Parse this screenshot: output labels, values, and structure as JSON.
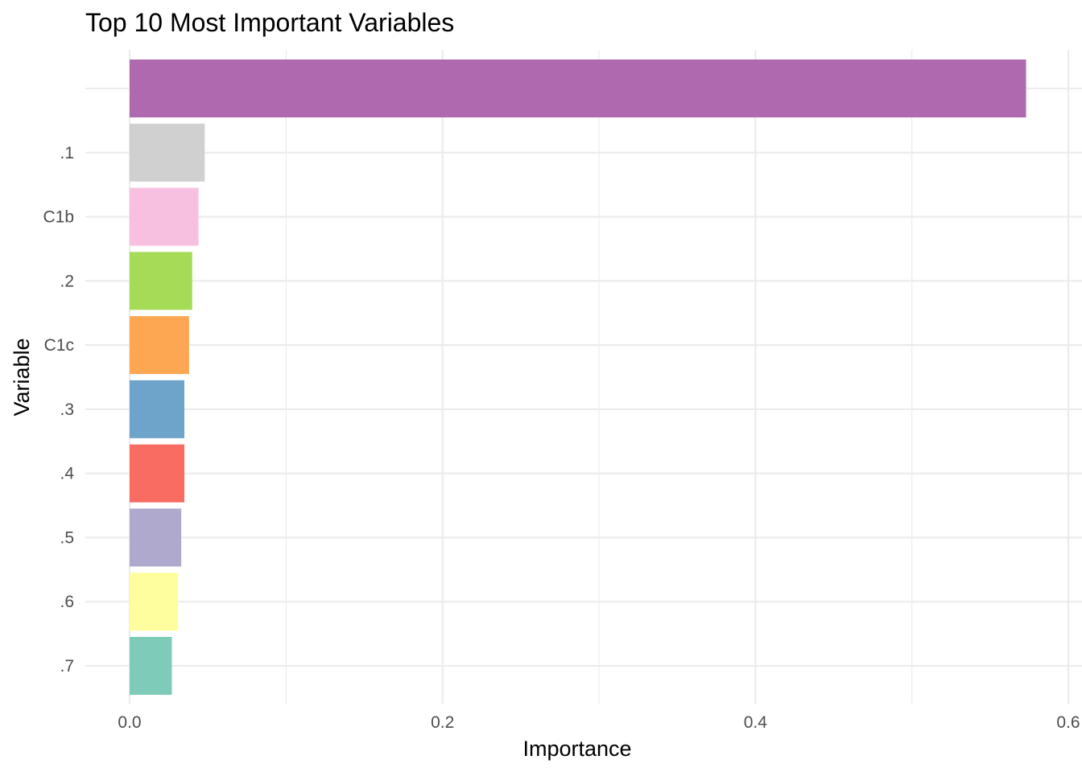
{
  "chart_data": {
    "type": "bar",
    "orientation": "horizontal",
    "title": "Top 10 Most Important Variables",
    "xlabel": "Importance",
    "ylabel": "Variable",
    "xlim": [
      0,
      0.6
    ],
    "x_ticks": [
      0.0,
      0.2,
      0.4,
      0.6
    ],
    "x_tick_labels": [
      "0.0",
      "0.2",
      "0.4",
      "0.6"
    ],
    "grid": true,
    "legend": "none",
    "categories": [
      "",
      ".1",
      "C1b",
      ".2",
      "C1c",
      ".3",
      ".4",
      ".5",
      ".6",
      ".7"
    ],
    "values": [
      0.573,
      0.048,
      0.044,
      0.04,
      0.038,
      0.035,
      0.035,
      0.033,
      0.031,
      0.027
    ],
    "colors": [
      "#AF69AF",
      "#D0D0D0",
      "#F8C0E0",
      "#A6DB58",
      "#FDA752",
      "#6EA3CA",
      "#F96C62",
      "#B0A9CE",
      "#FEFE9E",
      "#7FCBBA"
    ]
  }
}
